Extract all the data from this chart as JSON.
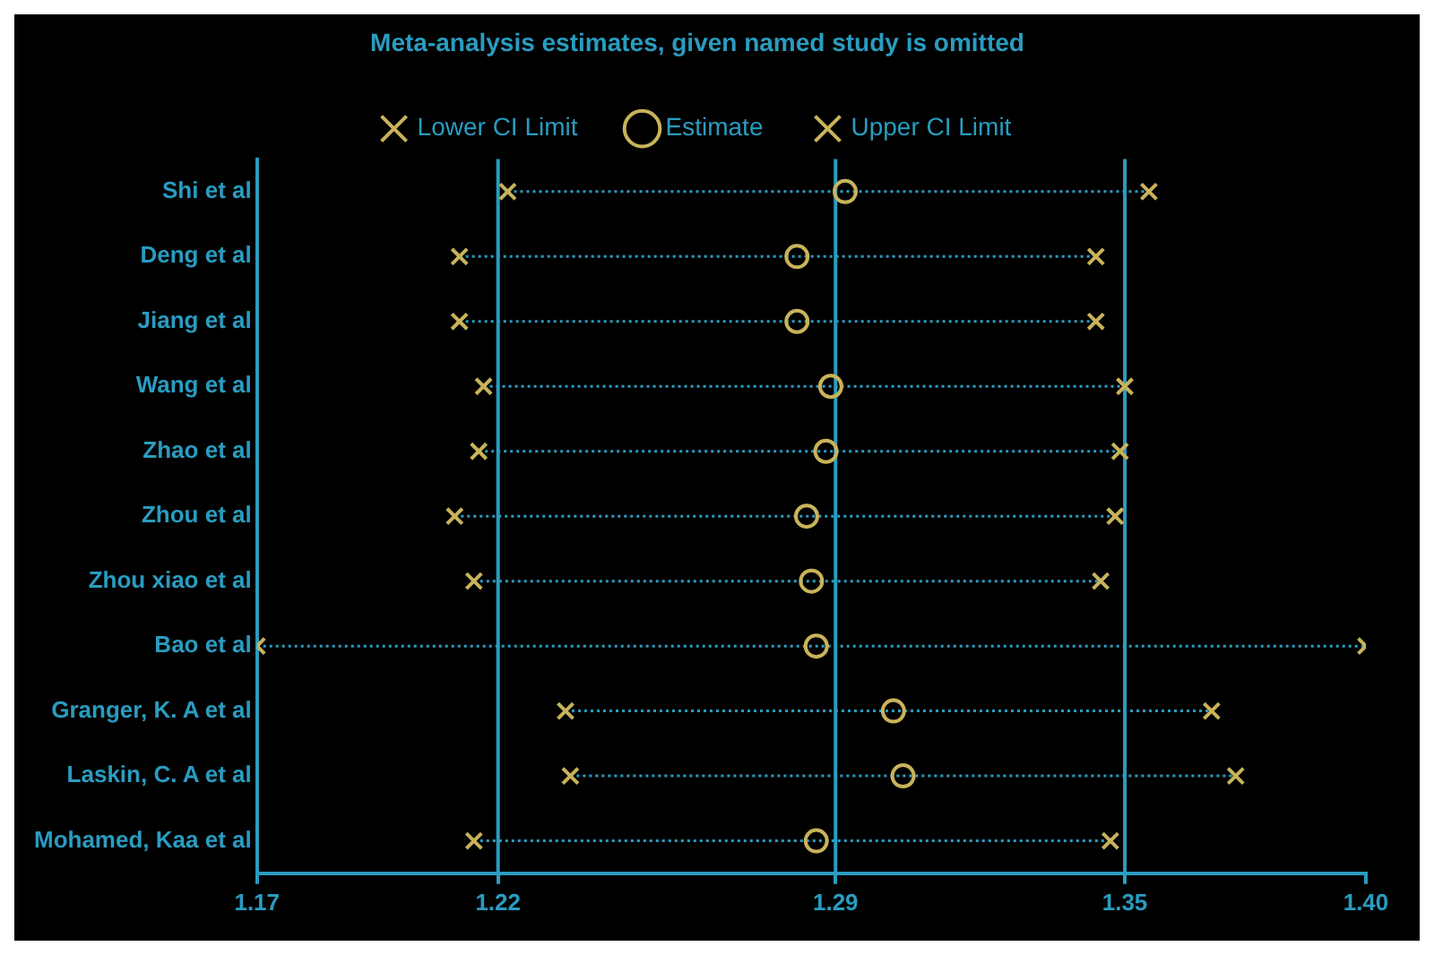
{
  "chart_data": {
    "type": "scatter",
    "orientation": "horizontal",
    "title": "Meta-analysis estimates, given named study is omitted",
    "categories": [
      "Shi et al",
      "Deng et al",
      "Jiang et al",
      "Wang et al",
      "Zhao et al",
      "Zhou et al",
      "Zhou xiao et al",
      "Bao et al",
      "Granger, K. A et al",
      "Laskin, C. A et al",
      "Mohamed, Kaa et al"
    ],
    "series": [
      {
        "name": "Lower CI Limit",
        "color": "#c9b35a",
        "marker": "cross",
        "values": [
          1.222,
          1.212,
          1.212,
          1.217,
          1.216,
          1.211,
          1.215,
          1.17,
          1.234,
          1.235,
          1.215
        ]
      },
      {
        "name": "Estimate",
        "color": "#c9b35a",
        "marker": "circle",
        "values": [
          1.292,
          1.282,
          1.282,
          1.289,
          1.288,
          1.284,
          1.285,
          1.286,
          1.302,
          1.304,
          1.286
        ]
      },
      {
        "name": "Upper CI Limit",
        "color": "#c9b35a",
        "marker": "cross",
        "values": [
          1.355,
          1.344,
          1.344,
          1.35,
          1.349,
          1.348,
          1.345,
          1.4,
          1.368,
          1.373,
          1.347
        ]
      }
    ],
    "line_style": "dotted",
    "xlim": [
      1.17,
      1.4
    ],
    "xticks": [
      1.17,
      1.22,
      1.29,
      1.35,
      {
        "value": 1.4,
        "label": "1.40"
      }
    ],
    "ref_lines": [
      {
        "axis": "x",
        "value": 1.22,
        "color": "#2a9cc0"
      },
      {
        "axis": "x",
        "value": 1.29,
        "color": "#2a9cc0"
      },
      {
        "axis": "x",
        "value": 1.35,
        "color": "#2a9cc0"
      }
    ],
    "grid": false,
    "legend": "top"
  }
}
